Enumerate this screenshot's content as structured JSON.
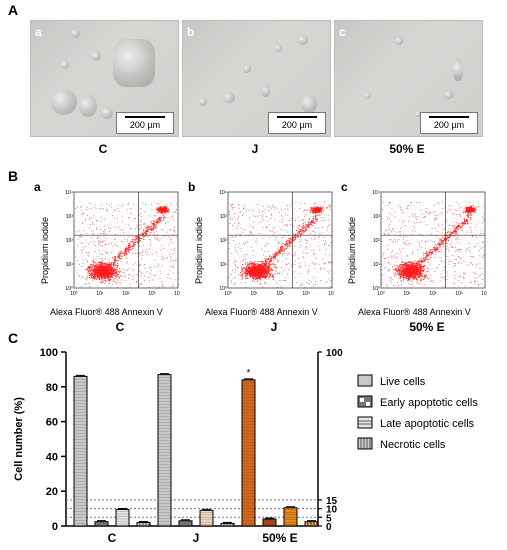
{
  "panels": {
    "A": "A",
    "B": "B",
    "C": "C"
  },
  "micrographs": [
    {
      "sub": "a",
      "scale": "200 µm",
      "condition": "C"
    },
    {
      "sub": "b",
      "scale": "200 µm",
      "condition": "J"
    },
    {
      "sub": "c",
      "scale": "200 µm",
      "condition": "50% E"
    }
  ],
  "flow": {
    "ylabel": "Propidium iodide",
    "xlabel": "Alexa Fluor® 488 Annexin V",
    "ticks": [
      "10⁰",
      "10¹",
      "10²",
      "10³",
      "10⁴"
    ],
    "plots": [
      {
        "sub": "a",
        "condition": "C"
      },
      {
        "sub": "b",
        "condition": "J"
      },
      {
        "sub": "c",
        "condition": "50% E"
      }
    ]
  },
  "chart_data": {
    "type": "bar",
    "ylabel": "Cell number (%)",
    "ylim": [
      0,
      100
    ],
    "yticks": [
      0,
      20,
      40,
      60,
      80,
      100
    ],
    "right_ticks": [
      0,
      5,
      10,
      15,
      100
    ],
    "reference_lines": [
      5,
      10,
      15
    ],
    "categories": [
      "C",
      "J",
      "50% E"
    ],
    "series": [
      {
        "name": "Live cells",
        "values": [
          86,
          87,
          84
        ],
        "colors": [
          "#c8c8c8",
          "#c8c8c8",
          "#d2691e"
        ]
      },
      {
        "name": "Early apoptotic cells",
        "values": [
          2.5,
          3,
          4
        ],
        "colors": [
          "#777777",
          "#777777",
          "#a0461a"
        ]
      },
      {
        "name": "Late apoptotic cells",
        "values": [
          9.5,
          9,
          10.5
        ],
        "colors": [
          "#e6e6e6",
          "#f0d9c0",
          "#e8891a"
        ]
      },
      {
        "name": "Necrotic cells",
        "values": [
          2,
          1.5,
          2.5
        ],
        "colors": [
          "#cfcfcf",
          "#cfcfcf",
          "#e2a060"
        ]
      }
    ],
    "annotation": "*"
  }
}
